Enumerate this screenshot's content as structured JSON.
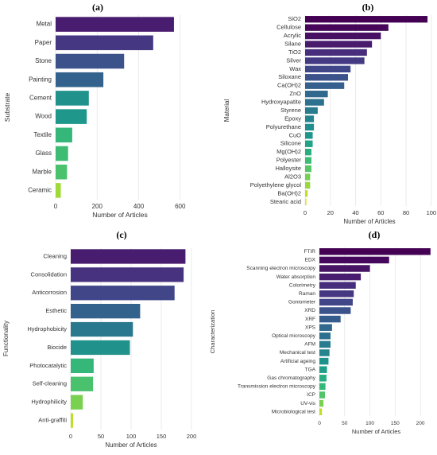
{
  "chart_data": [
    {
      "panel": "(a)",
      "type": "bar",
      "orientation": "horizontal",
      "xlabel": "Number of Articles",
      "ylabel": "Substrate",
      "xlim": [
        0,
        620
      ],
      "xticks": [
        0,
        200,
        400,
        600
      ],
      "grid": true,
      "categories": [
        "Metal",
        "Paper",
        "Stone",
        "Painting",
        "Cement",
        "Wood",
        "Textile",
        "Glass",
        "Marble",
        "Ceramic"
      ],
      "values": [
        570,
        470,
        330,
        230,
        160,
        150,
        80,
        60,
        55,
        25
      ],
      "colors": [
        "#481c6e",
        "#453781",
        "#3b528b",
        "#33638d",
        "#21918c",
        "#1f988b",
        "#35b779",
        "#3fbc73",
        "#4ac16d",
        "#a0da39"
      ]
    },
    {
      "panel": "(b)",
      "type": "bar",
      "orientation": "horizontal",
      "xlabel": "Number of Articles",
      "ylabel": "Material",
      "xlim": [
        0,
        102
      ],
      "xticks": [
        0,
        20,
        40,
        60,
        80,
        100
      ],
      "grid": true,
      "categories": [
        "SiO2",
        "Cellulose",
        "Acrylic",
        "Silane",
        "TiO2",
        "Silver",
        "Wax",
        "Siloxane",
        "Ca(OH)2",
        "ZnO",
        "Hydroxyapatite",
        "Styrene",
        "Epoxy",
        "Polyurethane",
        "CuO",
        "Silicone",
        "Mg(OH)2",
        "Polyester",
        "Halloysite",
        "Al2O3",
        "Polyethylene glycol",
        "Ba(OH)2",
        "Stearic acid"
      ],
      "values": [
        97,
        66,
        60,
        53,
        49,
        47,
        36,
        34,
        31,
        18,
        15,
        10,
        7,
        7,
        6,
        6,
        5,
        5,
        5,
        4,
        4,
        2,
        1
      ],
      "colors": [
        "#440154",
        "#46075a",
        "#471063",
        "#481b6d",
        "#472d7b",
        "#443983",
        "#3f4788",
        "#3b528b",
        "#355f8d",
        "#31688e",
        "#2c728e",
        "#297b8e",
        "#25848e",
        "#228d8d",
        "#1f968b",
        "#20a386",
        "#29af7f",
        "#3dbc74",
        "#56c667",
        "#75d054",
        "#98d83e",
        "#c0df25",
        "#e6e419"
      ]
    },
    {
      "panel": "(c)",
      "type": "bar",
      "orientation": "horizontal",
      "xlabel": "Number of Articles",
      "ylabel": "Functionality",
      "xlim": [
        0,
        200
      ],
      "xticks": [
        0,
        50,
        100,
        150,
        200
      ],
      "grid": true,
      "categories": [
        "Cleaning",
        "Consolidation",
        "Anticorrosion",
        "Esthetic",
        "Hydrophobicity",
        "Biocide",
        "Photocatalytic",
        "Self-cleaning",
        "Hydrophilicity",
        "Anti-graffiti"
      ],
      "values": [
        190,
        187,
        172,
        115,
        103,
        98,
        38,
        37,
        20,
        4
      ],
      "colors": [
        "#481c6e",
        "#46327e",
        "#404688",
        "#33638d",
        "#2a788e",
        "#21918c",
        "#35b779",
        "#4ac16d",
        "#7ad151",
        "#bddf26"
      ]
    },
    {
      "panel": "(d)",
      "type": "bar",
      "orientation": "horizontal",
      "xlabel": "Number of Articles",
      "ylabel": "Characterization",
      "xlim": [
        0,
        225
      ],
      "xticks": [
        0,
        50,
        100,
        150,
        200
      ],
      "grid": true,
      "categories": [
        "FTIR",
        "EDX",
        "Scanning electron microscopy",
        "Water absorption",
        "Colorimetry",
        "Raman",
        "Goniometer",
        "XRD",
        "XRF",
        "XPS",
        "Optical microscopy",
        "AFM",
        "Mechanical test",
        "Artificial ageing",
        "TGA",
        "Gas chromatography",
        "Transmission electron microscopy",
        "ICP",
        "UV-vis",
        "Microbiological test"
      ],
      "values": [
        220,
        138,
        100,
        82,
        72,
        68,
        66,
        62,
        42,
        25,
        22,
        22,
        20,
        18,
        15,
        14,
        12,
        11,
        8,
        5
      ],
      "colors": [
        "#440154",
        "#46085c",
        "#471365",
        "#481d6f",
        "#472e7c",
        "#453781",
        "#404688",
        "#3b528b",
        "#365c8d",
        "#31688e",
        "#2d708e",
        "#297b8e",
        "#25848e",
        "#20928c",
        "#1f9e89",
        "#26ad81",
        "#35b779",
        "#50c46a",
        "#7ad151",
        "#bddf26"
      ]
    }
  ]
}
